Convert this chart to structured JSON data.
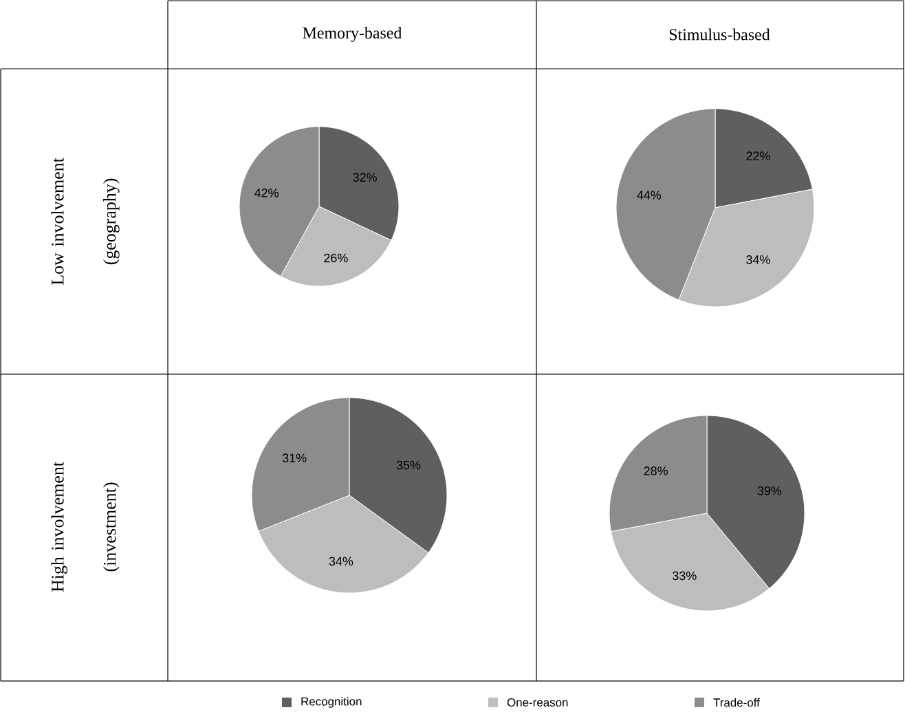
{
  "chart_data": [
    {
      "type": "pie",
      "title": "Memory-based",
      "ylabel": "Low involvement (geography)",
      "values": [
        32,
        26,
        42
      ],
      "value_labels": [
        "32%",
        "26%",
        "42%"
      ],
      "colors": [
        "#5f5f5f",
        "#bdbdbd",
        "#8c8c8c"
      ]
    },
    {
      "type": "pie",
      "title": "Stimulus-based",
      "values": [
        22,
        34,
        44
      ],
      "value_labels": [
        "22%",
        "34%",
        "44%"
      ],
      "colors": [
        "#5f5f5f",
        "#bdbdbd",
        "#8c8c8c"
      ]
    },
    {
      "type": "pie",
      "ylabel": "High involvement (investment)",
      "values": [
        35,
        34,
        31
      ],
      "value_labels": [
        "35%",
        "34%",
        "31%"
      ],
      "colors": [
        "#5f5f5f",
        "#bdbdbd",
        "#8c8c8c"
      ]
    },
    {
      "type": "pie",
      "legend": "bottom",
      "categories": [
        "Recognition",
        "One-reason",
        "Trade-off"
      ],
      "values": [
        39,
        33,
        28
      ],
      "value_labels": [
        "39%",
        "33%",
        "28%"
      ],
      "colors": [
        "#5f5f5f",
        "#bdbdbd",
        "#8c8c8c"
      ]
    }
  ]
}
